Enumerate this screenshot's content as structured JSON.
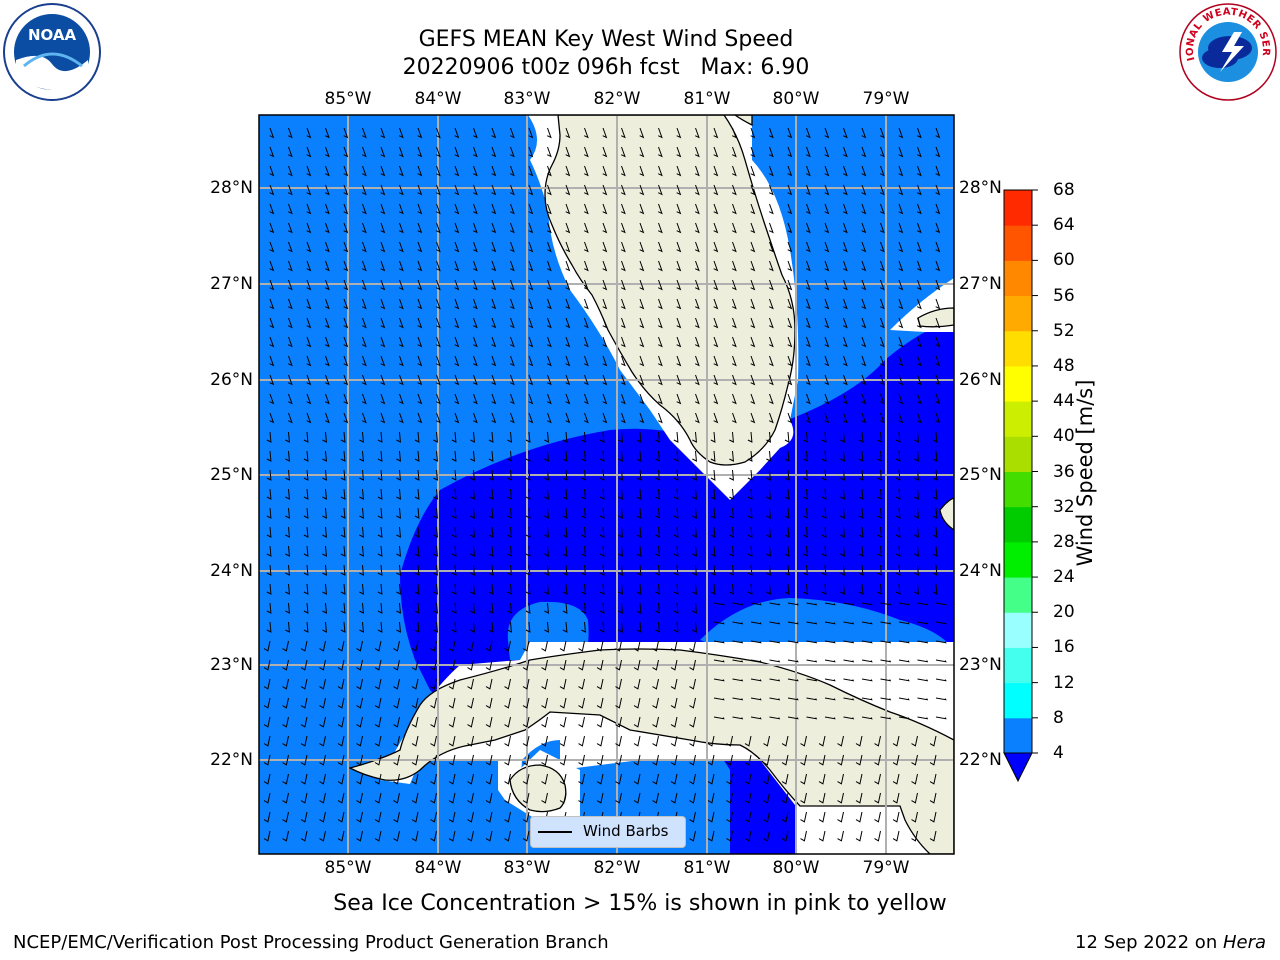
{
  "header": {
    "title_line1": "GEFS MEAN Key West Wind Speed",
    "title_line2": "20220906 t00z 096h fcst   Max: 6.90"
  },
  "logos": {
    "left_text": "NOAA",
    "right_text": "NATIONAL WEATHER SERVICE"
  },
  "map": {
    "lon_labels": [
      "85°W",
      "84°W",
      "83°W",
      "82°W",
      "81°W",
      "80°W",
      "79°W"
    ],
    "lat_labels": [
      "28°N",
      "27°N",
      "26°N",
      "25°N",
      "24°N",
      "23°N",
      "22°N"
    ],
    "legend_label": "Wind Barbs",
    "colors": {
      "ocean_light": "#0b80ff",
      "ocean_dark": "#0000ff",
      "land": "#eeeedd",
      "grid": "#b0b0b0"
    }
  },
  "colorbar": {
    "label": "Wind Speed [m/s]",
    "ticks": [
      "4",
      "8",
      "12",
      "16",
      "20",
      "24",
      "28",
      "32",
      "36",
      "40",
      "44",
      "48",
      "52",
      "56",
      "60",
      "64",
      "68"
    ],
    "colors": [
      "#0b80ff",
      "#00ccff",
      "#00ffff",
      "#44ffee",
      "#99ffff",
      "#44ff88",
      "#00ee00",
      "#00cc00",
      "#44dd00",
      "#aadd00",
      "#ccee00",
      "#ffff00",
      "#ffdd00",
      "#ffaa00",
      "#ff8800",
      "#ff5500",
      "#ff2a00",
      "#ff0000"
    ]
  },
  "caption": "Sea Ice Concentration > 15% is shown in pink to yellow",
  "footer": {
    "left": "NCEP/EMC/Verification Post Processing Product Generation Branch",
    "date": "12 Sep 2022 on ",
    "host": "Hera"
  }
}
